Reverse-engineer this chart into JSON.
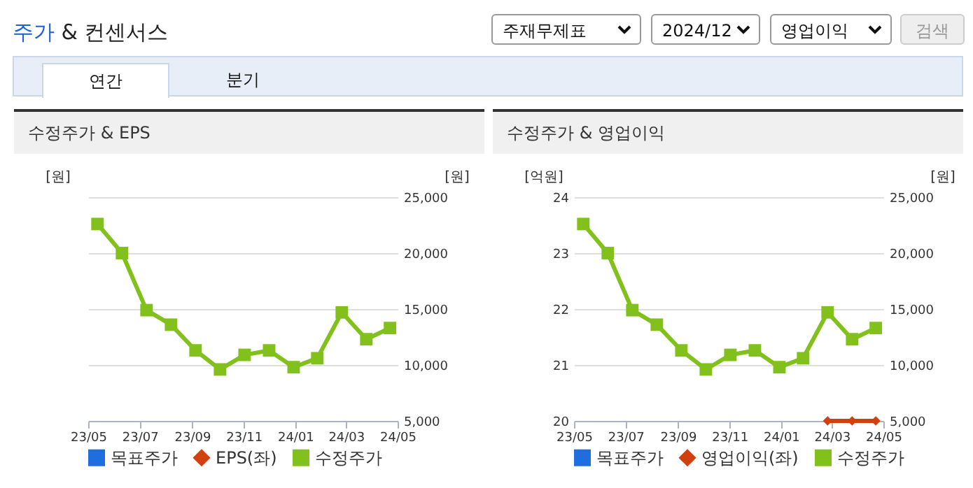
{
  "chart_data": [
    {
      "type": "other",
      "title": "주가 & 컨센서스",
      "annotations": [
        "주재무제표",
        "2024/12",
        "영업이익",
        "검색",
        "연간",
        "분기"
      ]
    },
    {
      "type": "line",
      "title": "수정주가 & EPS",
      "ylabel": "[원]",
      "y2label": "[원]",
      "x": [
        "2023-05-12",
        "2023-06-10",
        "2023-07-09",
        "2023-08-07",
        "2023-09-05",
        "2023-10-04",
        "2023-11-02",
        "2023-12-01",
        "2023-12-30",
        "2024-01-27",
        "2024-02-25",
        "2024-03-25",
        "2024-04-22"
      ],
      "xlim": [
        "2023-05-01",
        "2024-05-01"
      ],
      "xticks": [
        {
          "value": "2023-05-01",
          "label": "23/05"
        },
        {
          "value": "2023-07-01",
          "label": "23/07"
        },
        {
          "value": "2023-09-01",
          "label": "23/09"
        },
        {
          "value": "2023-11-01",
          "label": "23/11"
        },
        {
          "value": "2024-01-01",
          "label": "24/01"
        },
        {
          "value": "2024-03-01",
          "label": "24/03"
        },
        {
          "value": "2024-05-01",
          "label": "24/05"
        }
      ],
      "y2lim": [
        5000,
        25000
      ],
      "y2ticks": [
        {
          "value": 5000,
          "label": "5,000"
        },
        {
          "value": 10000,
          "label": "10,000"
        },
        {
          "value": 15000,
          "label": "15,000"
        },
        {
          "value": 20000,
          "label": "20,000"
        },
        {
          "value": 25000,
          "label": "25,000"
        }
      ],
      "grid": "y",
      "legend": "bottom",
      "series": [
        {
          "name": "목표주가",
          "type": "scatter",
          "marker": "square",
          "axis": "y2",
          "color": "#1f6ee0",
          "values": [
            null,
            null,
            null,
            null,
            null,
            null,
            null,
            null,
            null,
            null,
            null,
            null,
            null
          ]
        },
        {
          "name": "EPS(좌)",
          "type": "line",
          "marker": "diamond",
          "color": "#d2400f",
          "values": [
            null,
            null,
            null,
            null,
            null,
            null,
            null,
            null,
            null,
            null,
            null,
            null,
            null
          ]
        },
        {
          "name": "수정주가",
          "type": "line",
          "marker": "square",
          "axis": "y2",
          "color": "#82c01c",
          "values": [
            22600,
            20000,
            14900,
            13600,
            11300,
            9600,
            10900,
            11300,
            9800,
            10600,
            14700,
            12300,
            13300
          ]
        }
      ]
    },
    {
      "type": "line",
      "title": "수정주가 & 영업이익",
      "ylabel": "[억원]",
      "y2label": "[원]",
      "x": [
        "2023-05-12",
        "2023-06-10",
        "2023-07-09",
        "2023-08-07",
        "2023-09-05",
        "2023-10-04",
        "2023-11-02",
        "2023-12-01",
        "2023-12-30",
        "2024-01-27",
        "2024-02-25",
        "2024-03-25",
        "2024-04-22"
      ],
      "xlim": [
        "2023-05-01",
        "2024-05-01"
      ],
      "xticks": [
        {
          "value": "2023-05-01",
          "label": "23/05"
        },
        {
          "value": "2023-07-01",
          "label": "23/07"
        },
        {
          "value": "2023-09-01",
          "label": "23/09"
        },
        {
          "value": "2023-11-01",
          "label": "23/11"
        },
        {
          "value": "2024-01-01",
          "label": "24/01"
        },
        {
          "value": "2024-03-01",
          "label": "24/03"
        },
        {
          "value": "2024-05-01",
          "label": "24/05"
        }
      ],
      "ylim": [
        20,
        24
      ],
      "yticks": [
        20,
        21,
        22,
        23,
        24
      ],
      "y2lim": [
        5000,
        25000
      ],
      "y2ticks": [
        {
          "value": 5000,
          "label": "5,000"
        },
        {
          "value": 10000,
          "label": "10,000"
        },
        {
          "value": 15000,
          "label": "15,000"
        },
        {
          "value": 20000,
          "label": "20,000"
        },
        {
          "value": 25000,
          "label": "25,000"
        }
      ],
      "grid": "y",
      "legend": "bottom",
      "series": [
        {
          "name": "목표주가",
          "type": "scatter",
          "marker": "square",
          "axis": "y2",
          "color": "#1f6ee0",
          "values": [
            null,
            null,
            null,
            null,
            null,
            null,
            null,
            null,
            null,
            null,
            null,
            null,
            null
          ]
        },
        {
          "name": "영업이익(좌)",
          "type": "line",
          "marker": "diamond",
          "color": "#d2400f",
          "values": [
            null,
            null,
            null,
            null,
            null,
            null,
            null,
            null,
            null,
            null,
            20,
            20,
            20
          ]
        },
        {
          "name": "수정주가",
          "type": "line",
          "marker": "square",
          "axis": "y2",
          "color": "#82c01c",
          "values": [
            22600,
            20000,
            14900,
            13600,
            11300,
            9600,
            10900,
            11300,
            9800,
            10600,
            14700,
            12300,
            13300
          ]
        }
      ]
    }
  ]
}
